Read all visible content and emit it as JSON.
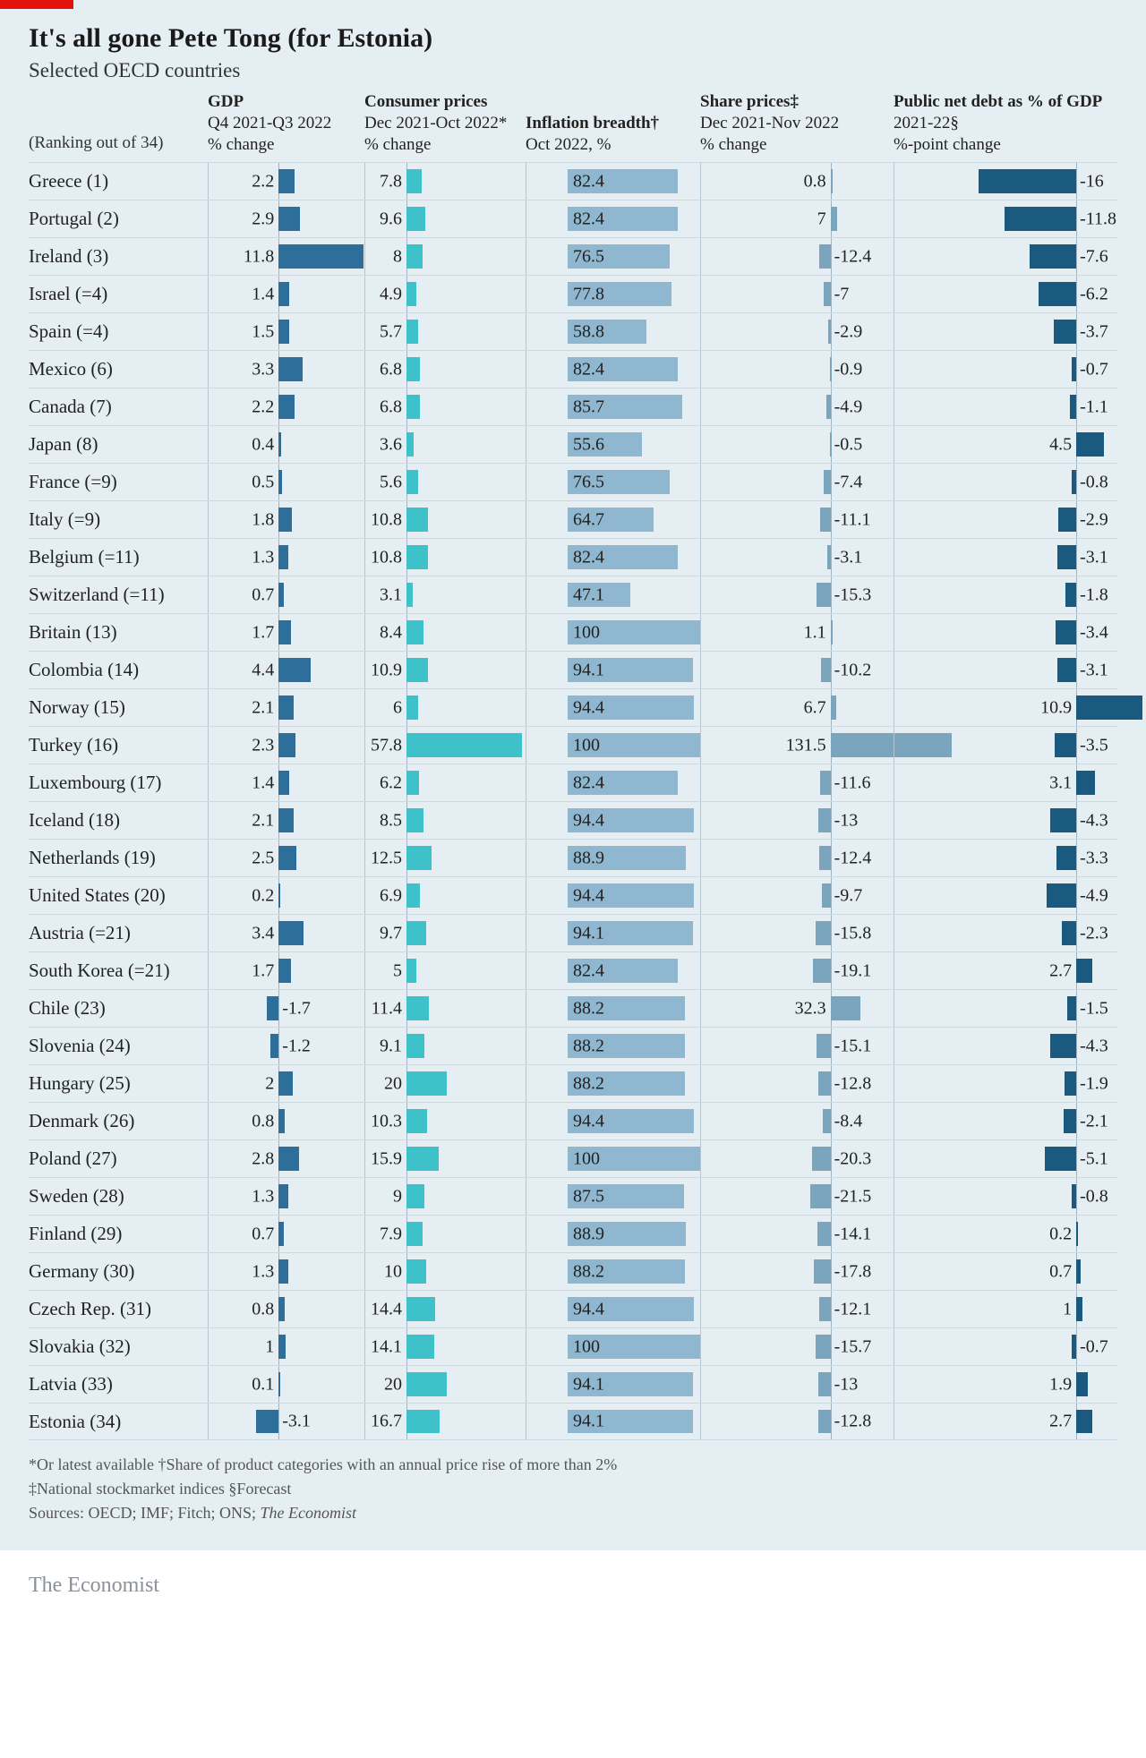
{
  "title": "It's all gone Pete Tong (for Estonia)",
  "subtitle": "Selected OECD countries",
  "ranking_label": "(Ranking out of 34)",
  "credit": "The Economist",
  "colors": {
    "background": "#e5eef3",
    "red_tab": "#e3120b",
    "rule": "#cdd9e1",
    "axis": "#9fb3c1",
    "bar_dark": "#2d6e9b",
    "bar_teal": "#3fc1c9",
    "bar_light": "#8fb7cf",
    "bar_mid": "#7aa5bd",
    "bar_debt": "#1b5a80"
  },
  "columns": [
    {
      "h1": "GDP",
      "h2": "Q4 2021-Q3 2022",
      "h3": "% change"
    },
    {
      "h1": "Consumer prices",
      "h2": "Dec 2021-Oct 2022*",
      "h3": "% change"
    },
    {
      "h1": "Inflation breadth†",
      "h2": "Oct 2022, %",
      "h3": ""
    },
    {
      "h1": "Share prices‡",
      "h2": "Dec 2021-Nov 2022",
      "h3": "% change"
    },
    {
      "h1": "Public net debt as % of GDP",
      "h2": "2021-22§",
      "h3": "%-point change"
    }
  ],
  "scales": {
    "gdp": {
      "min": -4,
      "max": 12,
      "zero_frac": 0.25,
      "color": "#2d6e9b"
    },
    "cpi": {
      "min": 0,
      "max": 60,
      "zero_frac": 0.0,
      "color": "#3fc1c9"
    },
    "breadth": {
      "min": 0,
      "max": 100,
      "zero_frac": 0.0,
      "color": "#8fb7cf"
    },
    "shares": {
      "min": -25,
      "max": 140,
      "zero_frac": 0.58,
      "color": "#7aa5bd"
    },
    "debt": {
      "min": -18,
      "max": 12,
      "zero_frac": 0.77,
      "color": "#1b5a80"
    }
  },
  "rows": [
    {
      "country": "Greece (1)",
      "gdp": 2.2,
      "cpi": 7.8,
      "breadth": 82.4,
      "shares": 0.8,
      "debt": -16
    },
    {
      "country": "Portugal (2)",
      "gdp": 2.9,
      "cpi": 9.6,
      "breadth": 82.4,
      "shares": 7.0,
      "debt": -11.8
    },
    {
      "country": "Ireland (3)",
      "gdp": 11.8,
      "cpi": 8.0,
      "breadth": 76.5,
      "shares": -12.4,
      "debt": -7.6
    },
    {
      "country": "Israel (=4)",
      "gdp": 1.4,
      "cpi": 4.9,
      "breadth": 77.8,
      "shares": -7.0,
      "debt": -6.2
    },
    {
      "country": "Spain (=4)",
      "gdp": 1.5,
      "cpi": 5.7,
      "breadth": 58.8,
      "shares": -2.9,
      "debt": -3.7
    },
    {
      "country": "Mexico (6)",
      "gdp": 3.3,
      "cpi": 6.8,
      "breadth": 82.4,
      "shares": -0.9,
      "debt": -0.7
    },
    {
      "country": "Canada (7)",
      "gdp": 2.2,
      "cpi": 6.8,
      "breadth": 85.7,
      "shares": -4.9,
      "debt": -1.1
    },
    {
      "country": "Japan (8)",
      "gdp": 0.4,
      "cpi": 3.6,
      "breadth": 55.6,
      "shares": -0.5,
      "debt": 4.5
    },
    {
      "country": "France (=9)",
      "gdp": 0.5,
      "cpi": 5.6,
      "breadth": 76.5,
      "shares": -7.4,
      "debt": -0.8
    },
    {
      "country": "Italy (=9)",
      "gdp": 1.8,
      "cpi": 10.8,
      "breadth": 64.7,
      "shares": -11.1,
      "debt": -2.9
    },
    {
      "country": "Belgium (=11)",
      "gdp": 1.3,
      "cpi": 10.8,
      "breadth": 82.4,
      "shares": -3.1,
      "debt": -3.1
    },
    {
      "country": "Switzerland (=11)",
      "gdp": 0.7,
      "cpi": 3.1,
      "breadth": 47.1,
      "shares": -15.3,
      "debt": -1.8
    },
    {
      "country": "Britain (13)",
      "gdp": 1.7,
      "cpi": 8.4,
      "breadth": 100,
      "shares": 1.1,
      "debt": -3.4
    },
    {
      "country": "Colombia (14)",
      "gdp": 4.4,
      "cpi": 10.9,
      "breadth": 94.1,
      "shares": -10.2,
      "debt": -3.1
    },
    {
      "country": "Norway (15)",
      "gdp": 2.1,
      "cpi": 6.0,
      "breadth": 94.4,
      "shares": 6.7,
      "debt": 10.9
    },
    {
      "country": "Turkey (16)",
      "gdp": 2.3,
      "cpi": 57.8,
      "breadth": 100,
      "shares": 131.5,
      "debt": -3.5
    },
    {
      "country": "Luxembourg (17)",
      "gdp": 1.4,
      "cpi": 6.2,
      "breadth": 82.4,
      "shares": -11.6,
      "debt": 3.1
    },
    {
      "country": "Iceland (18)",
      "gdp": 2.1,
      "cpi": 8.5,
      "breadth": 94.4,
      "shares": -13.0,
      "debt": -4.3
    },
    {
      "country": "Netherlands (19)",
      "gdp": 2.5,
      "cpi": 12.5,
      "breadth": 88.9,
      "shares": -12.4,
      "debt": -3.3
    },
    {
      "country": "United States (20)",
      "gdp": 0.2,
      "cpi": 6.9,
      "breadth": 94.4,
      "shares": -9.7,
      "debt": -4.9
    },
    {
      "country": "Austria (=21)",
      "gdp": 3.4,
      "cpi": 9.7,
      "breadth": 94.1,
      "shares": -15.8,
      "debt": -2.3
    },
    {
      "country": "South Korea (=21)",
      "gdp": 1.7,
      "cpi": 5.0,
      "breadth": 82.4,
      "shares": -19.1,
      "debt": 2.7
    },
    {
      "country": "Chile (23)",
      "gdp": -1.7,
      "cpi": 11.4,
      "breadth": 88.2,
      "shares": 32.3,
      "debt": -1.5
    },
    {
      "country": "Slovenia (24)",
      "gdp": -1.2,
      "cpi": 9.1,
      "breadth": 88.2,
      "shares": -15.1,
      "debt": -4.3
    },
    {
      "country": "Hungary (25)",
      "gdp": 2.0,
      "cpi": 20.0,
      "breadth": 88.2,
      "shares": -12.8,
      "debt": -1.9
    },
    {
      "country": "Denmark (26)",
      "gdp": 0.8,
      "cpi": 10.3,
      "breadth": 94.4,
      "shares": -8.4,
      "debt": -2.1
    },
    {
      "country": "Poland (27)",
      "gdp": 2.8,
      "cpi": 15.9,
      "breadth": 100,
      "shares": -20.3,
      "debt": -5.1
    },
    {
      "country": "Sweden (28)",
      "gdp": 1.3,
      "cpi": 9.0,
      "breadth": 87.5,
      "shares": -21.5,
      "debt": -0.8
    },
    {
      "country": "Finland (29)",
      "gdp": 0.7,
      "cpi": 7.9,
      "breadth": 88.9,
      "shares": -14.1,
      "debt": 0.2
    },
    {
      "country": "Germany (30)",
      "gdp": 1.3,
      "cpi": 10.0,
      "breadth": 88.2,
      "shares": -17.8,
      "debt": 0.7
    },
    {
      "country": "Czech Rep. (31)",
      "gdp": 0.8,
      "cpi": 14.4,
      "breadth": 94.4,
      "shares": -12.1,
      "debt": 1.0
    },
    {
      "country": "Slovakia (32)",
      "gdp": 1,
      "cpi": 14.1,
      "breadth": 100,
      "shares": -15.7,
      "debt": -0.7
    },
    {
      "country": "Latvia (33)",
      "gdp": 0.1,
      "cpi": 20.0,
      "breadth": 94.1,
      "shares": -13.0,
      "debt": 1.9
    },
    {
      "country": "Estonia (34)",
      "gdp": -3.1,
      "cpi": 16.7,
      "breadth": 94.1,
      "shares": -12.8,
      "debt": 2.7
    }
  ],
  "footnotes": [
    "*Or latest available    †Share of product categories with an annual price rise of more than 2%",
    "‡National stockmarket indices    §Forecast",
    "Sources: OECD; IMF; Fitch; ONS; The Economist"
  ]
}
